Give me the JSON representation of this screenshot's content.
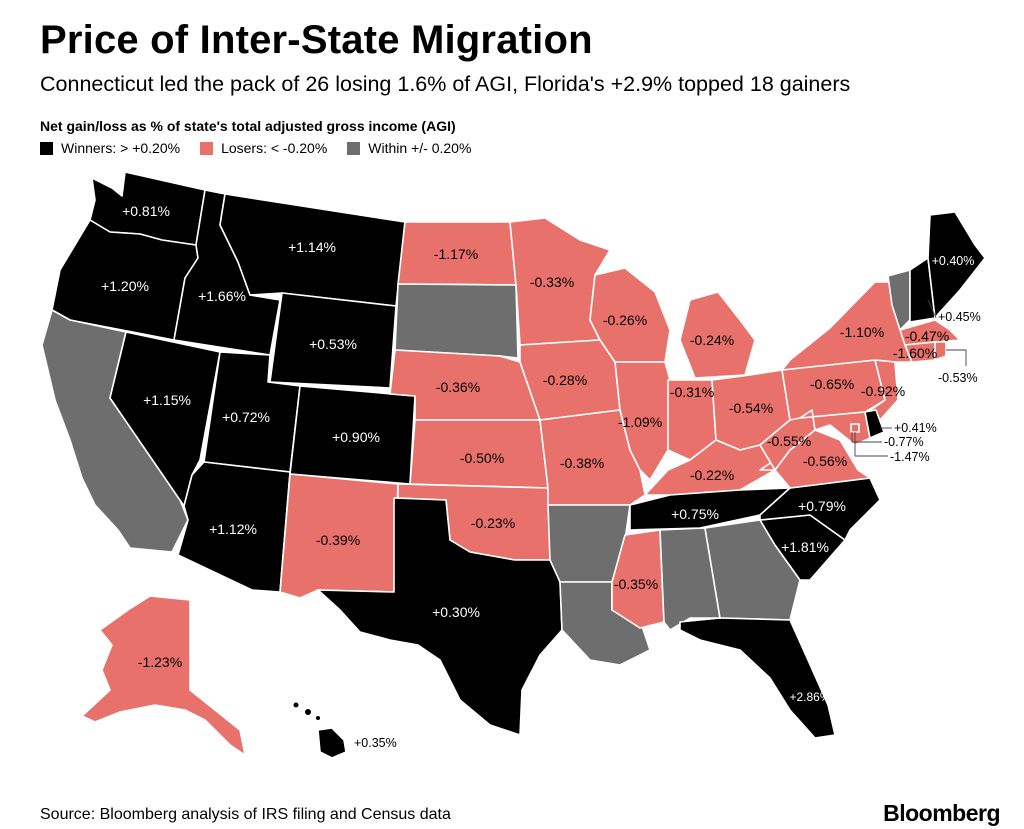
{
  "title": "Price of Inter-State Migration",
  "subtitle": "Connecticut led the pack of 26 losing 1.6% of AGI, Florida's +2.9% topped 18 gainers",
  "legend": {
    "title": "Net gain/loss as % of state's total adjusted gross income (AGI)",
    "items": [
      {
        "label": "Winners: > +0.20%",
        "color": "#000000"
      },
      {
        "label": "Losers: < -0.20%",
        "color": "#e8726b"
      },
      {
        "label": "Within +/- 0.20%",
        "color": "#6e6e6e"
      }
    ]
  },
  "colors": {
    "winner": "#000000",
    "loser": "#e8726b",
    "neutral": "#6e6e6e",
    "border": "#ffffff"
  },
  "states": {
    "WA": {
      "value": "+0.81%",
      "category": "winner"
    },
    "OR": {
      "value": "+1.20%",
      "category": "winner"
    },
    "CA": {
      "value": "",
      "category": "neutral"
    },
    "ID": {
      "value": "+1.66%",
      "category": "winner"
    },
    "NV": {
      "value": "+1.15%",
      "category": "winner"
    },
    "MT": {
      "value": "+1.14%",
      "category": "winner"
    },
    "WY": {
      "value": "+0.53%",
      "category": "winner"
    },
    "UT": {
      "value": "+0.72%",
      "category": "winner"
    },
    "AZ": {
      "value": "+1.12%",
      "category": "winner"
    },
    "CO": {
      "value": "+0.90%",
      "category": "winner"
    },
    "NM": {
      "value": "-0.39%",
      "category": "loser"
    },
    "ND": {
      "value": "-1.17%",
      "category": "loser"
    },
    "SD": {
      "value": "",
      "category": "neutral"
    },
    "NE": {
      "value": "-0.36%",
      "category": "loser"
    },
    "KS": {
      "value": "-0.50%",
      "category": "loser"
    },
    "OK": {
      "value": "-0.23%",
      "category": "loser"
    },
    "TX": {
      "value": "+0.30%",
      "category": "winner"
    },
    "MN": {
      "value": "-0.33%",
      "category": "loser"
    },
    "IA": {
      "value": "-0.28%",
      "category": "loser"
    },
    "MO": {
      "value": "-0.38%",
      "category": "loser"
    },
    "AR": {
      "value": "",
      "category": "neutral"
    },
    "LA": {
      "value": "",
      "category": "neutral"
    },
    "WI": {
      "value": "-0.26%",
      "category": "loser"
    },
    "IL": {
      "value": "-1.09%",
      "category": "loser"
    },
    "MI": {
      "value": "-0.24%",
      "category": "loser"
    },
    "IN": {
      "value": "-0.31%",
      "category": "loser"
    },
    "OH": {
      "value": "-0.54%",
      "category": "loser"
    },
    "KY": {
      "value": "-0.22%",
      "category": "loser"
    },
    "TN": {
      "value": "+0.75%",
      "category": "winner"
    },
    "MS": {
      "value": "-0.35%",
      "category": "loser"
    },
    "AL": {
      "value": "",
      "category": "neutral"
    },
    "GA": {
      "value": "",
      "category": "neutral"
    },
    "FL": {
      "value": "+2.86%",
      "category": "winner"
    },
    "SC": {
      "value": "+1.81%",
      "category": "winner"
    },
    "NC": {
      "value": "+0.79%",
      "category": "winner"
    },
    "VA": {
      "value": "-0.56%",
      "category": "loser"
    },
    "WV": {
      "value": "-0.55%",
      "category": "loser"
    },
    "PA": {
      "value": "-0.65%",
      "category": "loser"
    },
    "NY": {
      "value": "-1.10%",
      "category": "loser"
    },
    "NJ": {
      "value": "-0.92%",
      "category": "loser"
    },
    "MD": {
      "value": "-0.77%",
      "category": "loser"
    },
    "DE": {
      "value": "+0.41%",
      "category": "winner"
    },
    "DC": {
      "value": "-1.47%",
      "category": "loser"
    },
    "CT": {
      "value": "-1.60%",
      "category": "loser"
    },
    "RI": {
      "value": "-0.53%",
      "category": "loser"
    },
    "MA": {
      "value": "-0.47%",
      "category": "loser"
    },
    "VT": {
      "value": "",
      "category": "neutral"
    },
    "NH": {
      "value": "+0.45%",
      "category": "winner"
    },
    "ME": {
      "value": "+0.40%",
      "category": "winner"
    },
    "AK": {
      "value": "-1.23%",
      "category": "loser"
    },
    "HI": {
      "value": "+0.35%",
      "category": "winner"
    }
  },
  "source": "Source: Bloomberg analysis of IRS filing and Census data",
  "brand": "Bloomberg"
}
